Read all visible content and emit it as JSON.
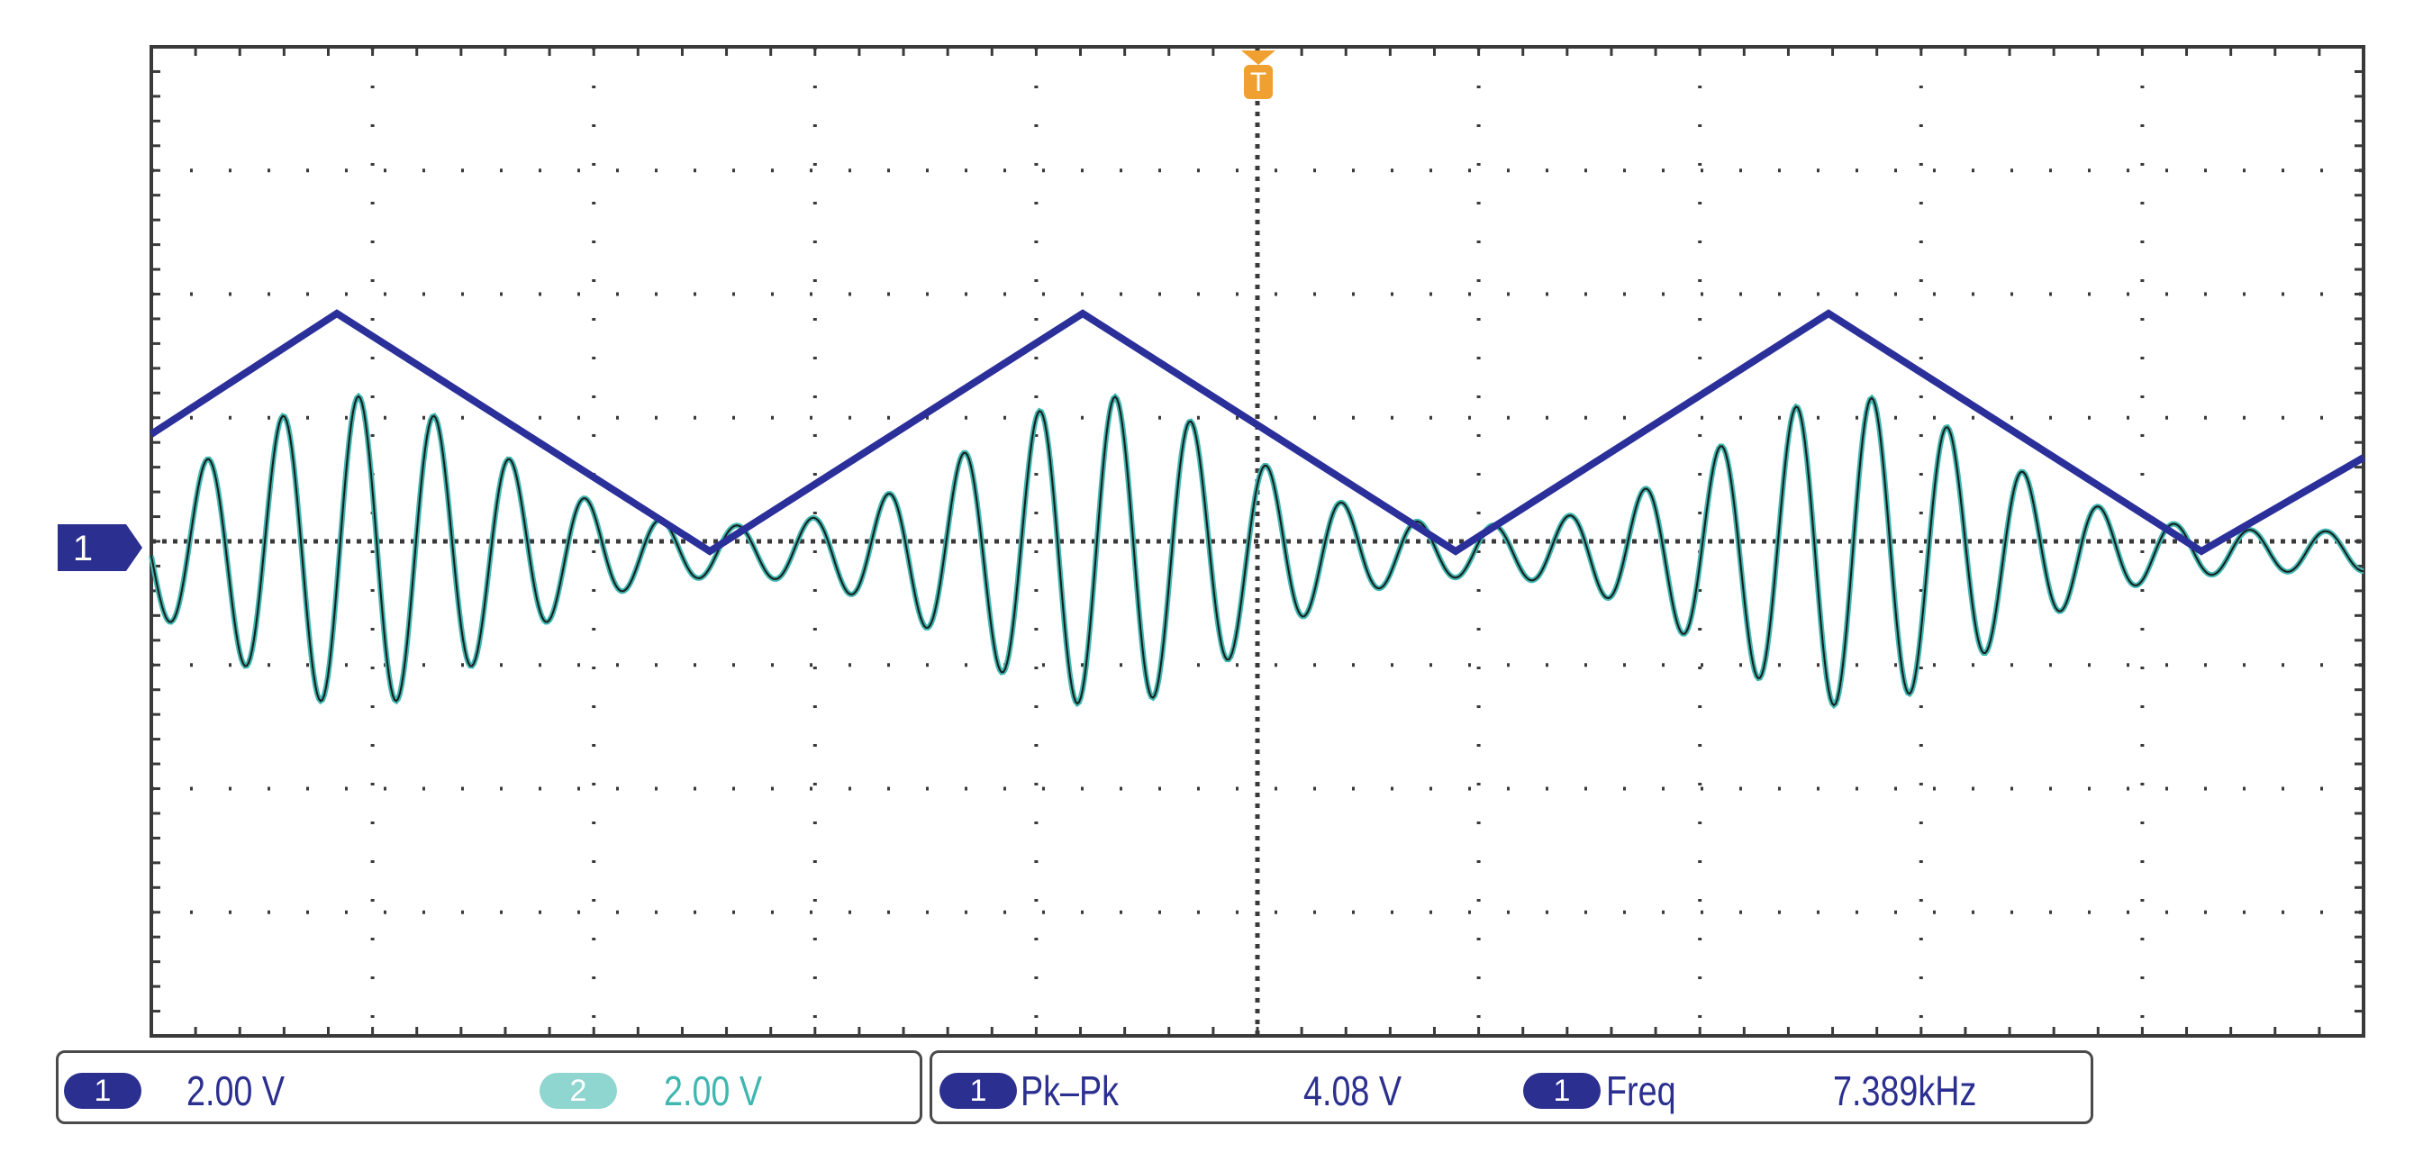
{
  "screen": {
    "background": "#ffffff",
    "graticule_background": "#ffffff",
    "graticule_color": "#3a3a3a"
  },
  "trigger_marker": {
    "label": "T",
    "color": "#f0a030",
    "icon": "trigger-position-marker"
  },
  "channel_marker": {
    "label": "1",
    "color": "#2b2f8f",
    "icon": "channel-1-ground-marker"
  },
  "traces": [
    {
      "name": "1",
      "color": "#2b2f9a",
      "shape": "triangle"
    },
    {
      "name": "2",
      "color": "#3fb7b0",
      "shape": "damped-oscillation"
    }
  ],
  "status": {
    "ch1": {
      "badge": "1",
      "scale": "2.00 V",
      "color": "#2b2f8f"
    },
    "ch2": {
      "badge": "2",
      "scale": "2.00 V",
      "color": "#8fd6d0",
      "text_color": "#3fb7b0"
    },
    "measurements": [
      {
        "badge": "1",
        "name": "Pk–Pk",
        "value": "4.08 V"
      },
      {
        "badge": "1",
        "name": "Freq",
        "value": "7.389kHz"
      }
    ]
  }
}
